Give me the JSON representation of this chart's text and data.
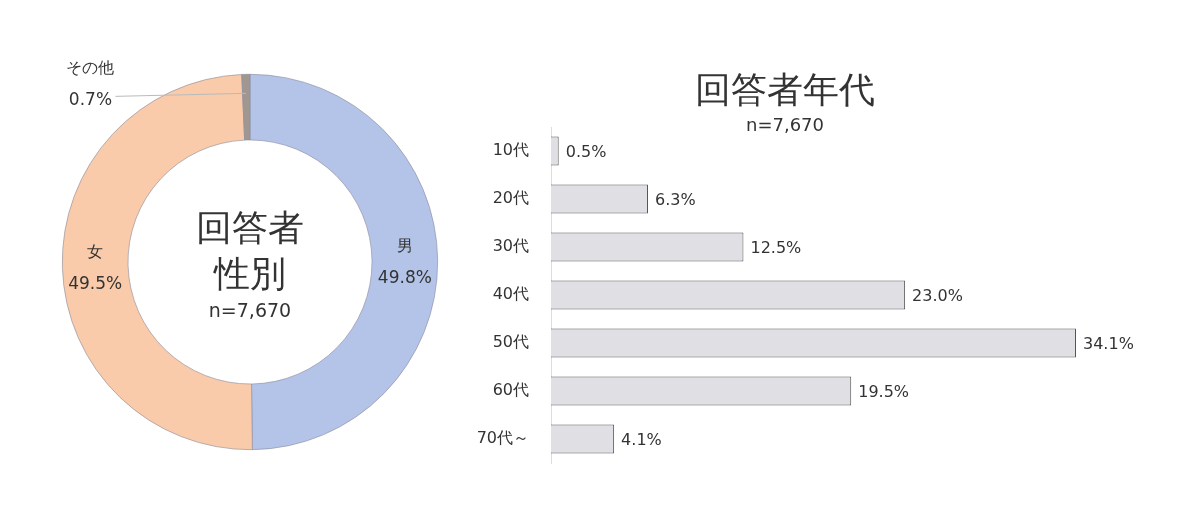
{
  "chart_data": [
    {
      "type": "donut",
      "title": "回答者性別",
      "subtitle": "n=7,670",
      "categories": [
        "男",
        "女",
        "その他"
      ],
      "values": [
        49.8,
        49.5,
        0.7
      ],
      "colors": [
        "#b4c4e8",
        "#f9cbaa",
        "#a09890"
      ],
      "value_labels": [
        "49.8%",
        "49.5%",
        "0.7%"
      ]
    },
    {
      "type": "bar",
      "orientation": "horizontal",
      "title": "回答者年代",
      "subtitle": "n=7,670",
      "categories": [
        "10代",
        "20代",
        "30代",
        "40代",
        "50代",
        "60代",
        "70代～"
      ],
      "values": [
        0.5,
        6.3,
        12.5,
        23.0,
        34.1,
        19.5,
        4.1
      ],
      "color": "#e0dfe3",
      "value_labels": [
        "0.5%",
        "6.3%",
        "12.5%",
        "23.0%",
        "34.1%",
        "19.5%",
        "4.1%"
      ]
    }
  ]
}
